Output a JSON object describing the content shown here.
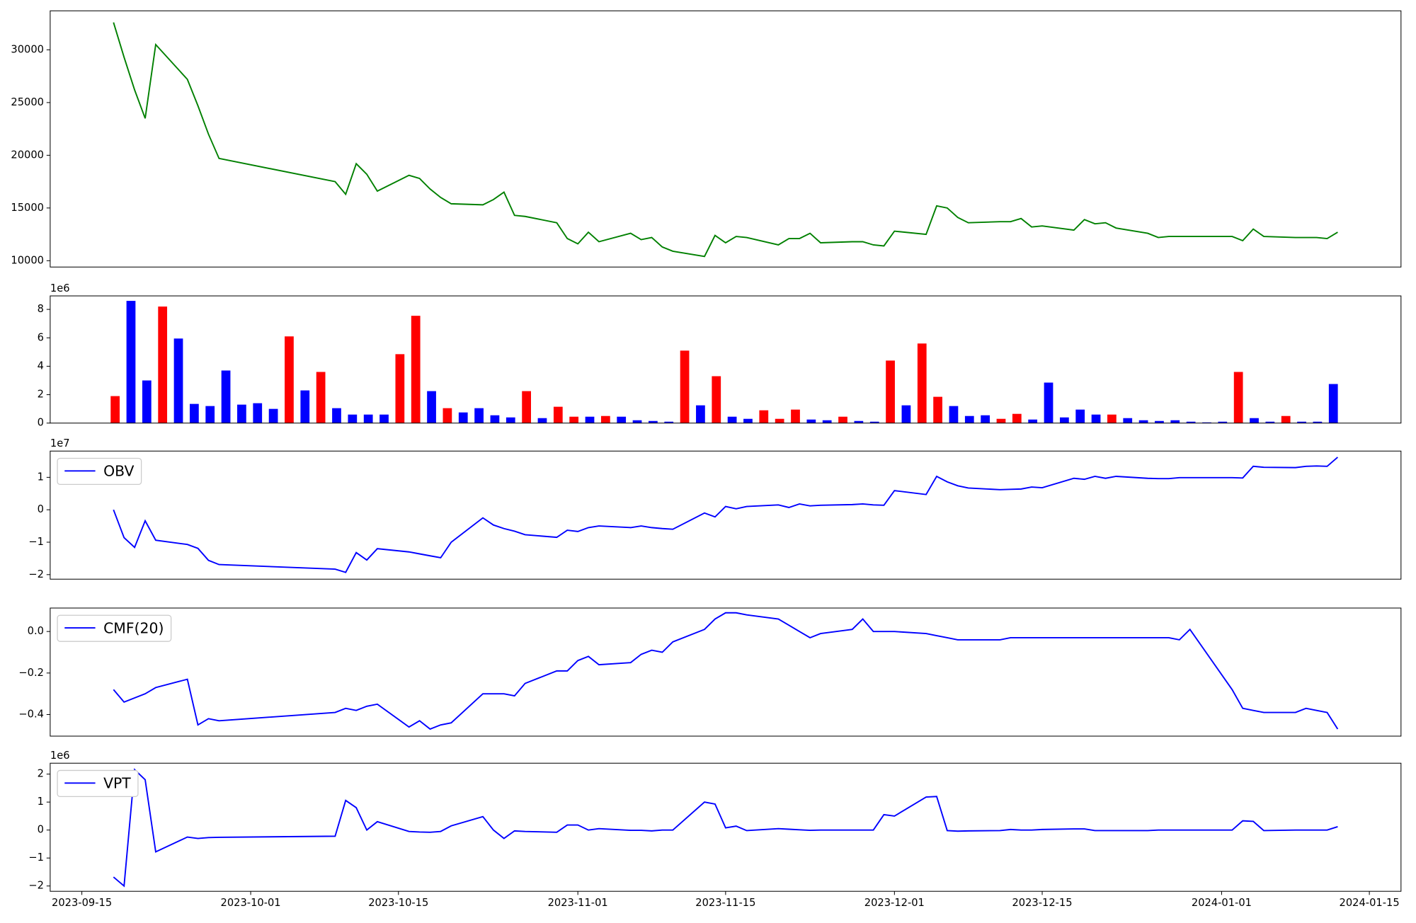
{
  "chart_data": [
    {
      "type": "line",
      "color": "green",
      "x": [
        "2023-09-18",
        "2023-09-19",
        "2023-09-20",
        "2023-09-21",
        "2023-09-22",
        "2023-09-25",
        "2023-09-26",
        "2023-09-27",
        "2023-09-28",
        "2023-10-09",
        "2023-10-10",
        "2023-10-11",
        "2023-10-12",
        "2023-10-13",
        "2023-10-16",
        "2023-10-17",
        "2023-10-18",
        "2023-10-19",
        "2023-10-20",
        "2023-10-23",
        "2023-10-24",
        "2023-10-25",
        "2023-10-26",
        "2023-10-27",
        "2023-10-30",
        "2023-10-31",
        "2023-11-01",
        "2023-11-02",
        "2023-11-03",
        "2023-11-06",
        "2023-11-07",
        "2023-11-08",
        "2023-11-09",
        "2023-11-10",
        "2023-11-13",
        "2023-11-14",
        "2023-11-15",
        "2023-11-16",
        "2023-11-17",
        "2023-11-20",
        "2023-11-21",
        "2023-11-22",
        "2023-11-23",
        "2023-11-24",
        "2023-11-27",
        "2023-11-28",
        "2023-11-29",
        "2023-11-30",
        "2023-12-01",
        "2023-12-04",
        "2023-12-05",
        "2023-12-06",
        "2023-12-07",
        "2023-12-08",
        "2023-12-11",
        "2023-12-12",
        "2023-12-13",
        "2023-12-14",
        "2023-12-15",
        "2023-12-18",
        "2023-12-19",
        "2023-12-20",
        "2023-12-21",
        "2023-12-22",
        "2023-12-25",
        "2023-12-26",
        "2023-12-27",
        "2023-12-28",
        "2023-12-29",
        "2024-01-02",
        "2024-01-03",
        "2024-01-04",
        "2024-01-05",
        "2024-01-08",
        "2024-01-09",
        "2024-01-10",
        "2024-01-11",
        "2024-01-12"
      ],
      "values": [
        32600,
        29300,
        26200,
        23500,
        30500,
        27200,
        24700,
        22000,
        19700,
        17500,
        16300,
        19200,
        18200,
        16600,
        18100,
        17800,
        16800,
        16000,
        15400,
        15300,
        15800,
        16500,
        14300,
        14200,
        13600,
        12100,
        11600,
        12700,
        11800,
        12600,
        12000,
        12200,
        11300,
        10900,
        10400,
        12400,
        11700,
        12300,
        12200,
        11500,
        12100,
        12100,
        12600,
        11700,
        11800,
        11800,
        11500,
        11400,
        12800,
        12500,
        15200,
        15000,
        14100,
        13600,
        13700,
        13700,
        14000,
        13200,
        13300,
        12900,
        13900,
        13500,
        13600,
        13100,
        12600,
        12200,
        12300,
        12300,
        12300,
        12300,
        11900,
        13000,
        12300,
        12200,
        12200,
        12200,
        12100,
        12700
      ],
      "xlim": [
        "2023-09-12",
        "2024-01-18"
      ],
      "ylim": [
        9400,
        33700
      ],
      "yticks": [
        10000,
        15000,
        20000,
        25000,
        30000
      ]
    },
    {
      "type": "bar",
      "y_offset_label": "1e6",
      "categories": [
        null,
        null,
        null,
        null,
        null,
        null,
        null,
        null,
        null,
        null,
        null,
        null,
        null,
        null,
        null,
        null,
        null,
        null,
        null,
        null,
        null,
        null,
        null,
        null,
        null,
        null,
        null,
        null,
        null,
        null,
        null,
        null,
        null,
        null,
        null,
        null,
        null,
        null,
        null,
        null,
        null,
        null,
        null,
        null,
        null,
        null,
        null,
        null,
        null,
        null,
        null,
        null,
        null,
        null,
        null,
        null,
        null,
        null,
        null,
        null,
        null,
        null,
        null,
        null,
        null,
        null,
        null,
        null,
        null,
        null,
        null,
        null,
        null,
        null,
        null,
        null,
        null,
        null
      ],
      "values": [
        1900000,
        8600000,
        3000000,
        8200000,
        5950000,
        1350000,
        1200000,
        3700000,
        1300000,
        1400000,
        1000000,
        6100000,
        2300000,
        3600000,
        1050000,
        600000,
        600000,
        600000,
        4850000,
        7550000,
        2250000,
        1050000,
        750000,
        1050000,
        550000,
        400000,
        2250000,
        350000,
        1150000,
        450000,
        450000,
        500000,
        450000,
        200000,
        150000,
        100000,
        5100000,
        1250000,
        3300000,
        450000,
        300000,
        900000,
        300000,
        950000,
        250000,
        200000,
        450000,
        150000,
        100000,
        4400000,
        1250000,
        5600000,
        1850000,
        1200000,
        500000,
        550000,
        300000,
        650000,
        250000,
        2850000,
        400000,
        950000,
        600000,
        600000,
        350000,
        200000,
        150000,
        200000,
        100000,
        50000,
        100000,
        3600000,
        350000,
        100000,
        500000,
        100000,
        100000,
        2750000
      ],
      "colors": [
        "red",
        "blue",
        "blue",
        "red",
        "blue",
        "blue",
        "blue",
        "blue",
        "blue",
        "blue",
        "blue",
        "red",
        "blue",
        "red",
        "blue",
        "blue",
        "blue",
        "blue",
        "red",
        "red",
        "blue",
        "red",
        "blue",
        "blue",
        "blue",
        "blue",
        "red",
        "blue",
        "red",
        "red",
        "blue",
        "red",
        "blue",
        "blue",
        "blue",
        "blue",
        "red",
        "blue",
        "red",
        "blue",
        "blue",
        "red",
        "red",
        "red",
        "blue",
        "blue",
        "red",
        "blue",
        "blue",
        "red",
        "blue",
        "red",
        "red",
        "blue",
        "blue",
        "blue",
        "red",
        "red",
        "blue",
        "blue",
        "blue",
        "blue",
        "blue",
        "red",
        "blue",
        "blue",
        "blue",
        "blue",
        "blue",
        "blue",
        "blue",
        "red",
        "blue",
        "blue",
        "red",
        "blue",
        "blue",
        "blue"
      ],
      "ylim": [
        0,
        8950000
      ],
      "yticks": [
        0,
        {
          "value": 2000000,
          "label": "2"
        },
        {
          "value": 4000000,
          "label": "4"
        },
        {
          "value": 6000000,
          "label": "6"
        },
        {
          "value": 8000000,
          "label": "8"
        }
      ]
    },
    {
      "type": "line",
      "y_offset_label": "1e7",
      "legend": "upper left",
      "x": [
        "2023-09-18",
        "2023-09-19",
        "2023-09-20",
        "2023-09-21",
        "2023-09-22",
        "2023-09-25",
        "2023-09-26",
        "2023-09-27",
        "2023-09-28",
        "2023-10-09",
        "2023-10-10",
        "2023-10-11",
        "2023-10-12",
        "2023-10-13",
        "2023-10-16",
        "2023-10-17",
        "2023-10-18",
        "2023-10-19",
        "2023-10-20",
        "2023-10-23",
        "2023-10-24",
        "2023-10-25",
        "2023-10-26",
        "2023-10-27",
        "2023-10-30",
        "2023-10-31",
        "2023-11-01",
        "2023-11-02",
        "2023-11-03",
        "2023-11-06",
        "2023-11-07",
        "2023-11-08",
        "2023-11-09",
        "2023-11-10",
        "2023-11-13",
        "2023-11-14",
        "2023-11-15",
        "2023-11-16",
        "2023-11-17",
        "2023-11-20",
        "2023-11-21",
        "2023-11-22",
        "2023-11-23",
        "2023-11-24",
        "2023-11-27",
        "2023-11-28",
        "2023-11-29",
        "2023-11-30",
        "2023-12-01",
        "2023-12-04",
        "2023-12-05",
        "2023-12-06",
        "2023-12-07",
        "2023-12-08",
        "2023-12-11",
        "2023-12-12",
        "2023-12-13",
        "2023-12-14",
        "2023-12-15",
        "2023-12-18",
        "2023-12-19",
        "2023-12-20",
        "2023-12-21",
        "2023-12-22",
        "2023-12-25",
        "2023-12-26",
        "2023-12-27",
        "2023-12-28",
        "2023-12-29",
        "2024-01-02",
        "2024-01-03",
        "2024-01-04",
        "2024-01-05",
        "2024-01-08",
        "2024-01-09",
        "2024-01-10",
        "2024-01-11",
        "2024-01-12"
      ],
      "series": [
        {
          "name": "OBV",
          "color": "blue",
          "values": [
            0,
            -8600000,
            -11600000,
            -3400000,
            -9400000,
            -10700000,
            -11900000,
            -15600000,
            -16900000,
            -18300000,
            -19300000,
            -13200000,
            -15500000,
            -12000000,
            -13000000,
            -13600000,
            -14200000,
            -14800000,
            -10000000,
            -2500000,
            -4700000,
            -5800000,
            -6600000,
            -7700000,
            -8500000,
            -6300000,
            -6700000,
            -5500000,
            -5000000,
            -5500000,
            -5000000,
            -5500000,
            -5800000,
            -6000000,
            -1000000,
            -2200000,
            1000000,
            300000,
            1000000,
            1500000,
            700000,
            1800000,
            1200000,
            1400000,
            1600000,
            1800000,
            1500000,
            1400000,
            5900000,
            4700000,
            10300000,
            8600000,
            7400000,
            6700000,
            6200000,
            6300000,
            6400000,
            7000000,
            6800000,
            9700000,
            9400000,
            10300000,
            9700000,
            10300000,
            9700000,
            9600000,
            9600000,
            9900000,
            9900000,
            9900000,
            9800000,
            13400000,
            13100000,
            13000000,
            13400000,
            13500000,
            13400000,
            16200000
          ]
        }
      ],
      "xlim": [
        "2023-09-12",
        "2024-01-18"
      ],
      "ylim": [
        -21400000,
        18100000
      ],
      "yticks": [
        {
          "value": -20000000,
          "label": "−2"
        },
        {
          "value": -10000000,
          "label": "−1"
        },
        0,
        {
          "value": 10000000,
          "label": "1"
        }
      ]
    },
    {
      "type": "line",
      "legend": "upper left",
      "x": [
        "2023-09-18",
        "2023-09-19",
        "2023-09-20",
        "2023-09-21",
        "2023-09-22",
        "2023-09-25",
        "2023-09-26",
        "2023-09-27",
        "2023-09-28",
        "2023-10-09",
        "2023-10-10",
        "2023-10-11",
        "2023-10-12",
        "2023-10-13",
        "2023-10-16",
        "2023-10-17",
        "2023-10-18",
        "2023-10-19",
        "2023-10-20",
        "2023-10-23",
        "2023-10-24",
        "2023-10-25",
        "2023-10-26",
        "2023-10-27",
        "2023-10-30",
        "2023-10-31",
        "2023-11-01",
        "2023-11-02",
        "2023-11-03",
        "2023-11-06",
        "2023-11-07",
        "2023-11-08",
        "2023-11-09",
        "2023-11-10",
        "2023-11-13",
        "2023-11-14",
        "2023-11-15",
        "2023-11-16",
        "2023-11-17",
        "2023-11-20",
        "2023-11-21",
        "2023-11-22",
        "2023-11-23",
        "2023-11-24",
        "2023-11-27",
        "2023-11-28",
        "2023-11-29",
        "2023-11-30",
        "2023-12-01",
        "2023-12-04",
        "2023-12-05",
        "2023-12-06",
        "2023-12-07",
        "2023-12-08",
        "2023-12-11",
        "2023-12-12",
        "2023-12-13",
        "2023-12-14",
        "2023-12-15",
        "2023-12-18",
        "2023-12-19",
        "2023-12-20",
        "2023-12-21",
        "2023-12-22",
        "2023-12-25",
        "2023-12-26",
        "2023-12-27",
        "2023-12-28",
        "2023-12-29",
        "2024-01-02",
        "2024-01-03",
        "2024-01-04",
        "2024-01-05",
        "2024-01-08",
        "2024-01-09",
        "2024-01-10",
        "2024-01-11",
        "2024-01-12"
      ],
      "series": [
        {
          "name": "CMF(20)",
          "color": "blue",
          "values": [
            -0.28,
            -0.34,
            -0.32,
            -0.3,
            -0.27,
            -0.23,
            -0.45,
            -0.42,
            -0.43,
            -0.39,
            -0.37,
            -0.38,
            -0.36,
            -0.35,
            -0.46,
            -0.43,
            -0.47,
            -0.45,
            -0.44,
            -0.3,
            -0.3,
            -0.3,
            -0.31,
            -0.25,
            -0.19,
            -0.19,
            -0.14,
            -0.12,
            -0.16,
            -0.15,
            -0.11,
            -0.09,
            -0.1,
            -0.05,
            0.01,
            0.06,
            0.09,
            0.09,
            0.08,
            0.06,
            0.03,
            0.0,
            -0.03,
            -0.01,
            0.01,
            0.06,
            0.0,
            0.0,
            0.0,
            -0.01,
            -0.02,
            -0.03,
            -0.04,
            -0.04,
            -0.04,
            -0.03,
            -0.03,
            -0.03,
            -0.03,
            -0.03,
            -0.03,
            -0.03,
            -0.03,
            -0.03,
            -0.03,
            -0.03,
            -0.03,
            -0.04,
            0.01,
            -0.28,
            -0.37,
            -0.38,
            -0.39,
            -0.39,
            -0.37,
            -0.38,
            -0.39,
            -0.47
          ]
        }
      ],
      "xlim": [
        "2023-09-12",
        "2024-01-18"
      ],
      "ylim": [
        -0.504,
        0.113
      ],
      "yticks": [
        {
          "value": -0.4,
          "label": "−0.4"
        },
        {
          "value": -0.2,
          "label": "−0.2"
        },
        {
          "value": 0,
          "label": "0.0"
        }
      ]
    },
    {
      "type": "line",
      "y_offset_label": "1e6",
      "legend": "upper left",
      "x": [
        "2023-09-18",
        "2023-09-19",
        "2023-09-20",
        "2023-09-21",
        "2023-09-22",
        "2023-09-25",
        "2023-09-26",
        "2023-09-27",
        "2023-09-28",
        "2023-10-09",
        "2023-10-10",
        "2023-10-11",
        "2023-10-12",
        "2023-10-13",
        "2023-10-16",
        "2023-10-17",
        "2023-10-18",
        "2023-10-19",
        "2023-10-20",
        "2023-10-23",
        "2023-10-24",
        "2023-10-25",
        "2023-10-26",
        "2023-10-27",
        "2023-10-30",
        "2023-10-31",
        "2023-11-01",
        "2023-11-02",
        "2023-11-03",
        "2023-11-06",
        "2023-11-07",
        "2023-11-08",
        "2023-11-09",
        "2023-11-10",
        "2023-11-13",
        "2023-11-14",
        "2023-11-15",
        "2023-11-16",
        "2023-11-17",
        "2023-11-20",
        "2023-11-21",
        "2023-11-22",
        "2023-11-23",
        "2023-11-24",
        "2023-11-27",
        "2023-11-28",
        "2023-11-29",
        "2023-11-30",
        "2023-12-01",
        "2023-12-04",
        "2023-12-05",
        "2023-12-06",
        "2023-12-07",
        "2023-12-08",
        "2023-12-11",
        "2023-12-12",
        "2023-12-13",
        "2023-12-14",
        "2023-12-15",
        "2023-12-18",
        "2023-12-19",
        "2023-12-20",
        "2023-12-21",
        "2023-12-22",
        "2023-12-25",
        "2023-12-26",
        "2023-12-27",
        "2023-12-28",
        "2023-12-29",
        "2024-01-02",
        "2024-01-03",
        "2024-01-04",
        "2024-01-05",
        "2024-01-08",
        "2024-01-09",
        "2024-01-10",
        "2024-01-11",
        "2024-01-12"
      ],
      "series": [
        {
          "name": "VPT",
          "color": "blue",
          "values": [
            -1680000,
            -2000000,
            2160000,
            1800000,
            -780000,
            -250000,
            -300000,
            -270000,
            -260000,
            -220000,
            1060000,
            800000,
            0,
            300000,
            -50000,
            -70000,
            -80000,
            -50000,
            150000,
            480000,
            0,
            -300000,
            -30000,
            -50000,
            -80000,
            180000,
            180000,
            0,
            50000,
            -10000,
            -10000,
            -30000,
            0,
            0,
            1000000,
            930000,
            80000,
            140000,
            -20000,
            50000,
            30000,
            10000,
            -10000,
            0,
            0,
            0,
            0,
            550000,
            500000,
            1180000,
            1200000,
            -20000,
            -40000,
            -30000,
            -20000,
            20000,
            0,
            0,
            20000,
            40000,
            40000,
            -20000,
            -20000,
            -20000,
            -20000,
            0,
            0,
            0,
            0,
            0,
            330000,
            310000,
            -20000,
            0,
            0,
            0,
            0,
            120000
          ]
        }
      ],
      "xlim": [
        "2023-09-12",
        "2024-01-18"
      ],
      "ylim": [
        -2190000,
        2390000
      ],
      "yticks": [
        {
          "value": -2000000,
          "label": "−2"
        },
        {
          "value": -1000000,
          "label": "−1"
        },
        0,
        {
          "value": 1000000,
          "label": "1"
        },
        {
          "value": 2000000,
          "label": "2"
        }
      ],
      "xticks": [
        "2023-09-15",
        "2023-10-01",
        "2023-10-15",
        "2023-11-01",
        "2023-11-15",
        "2023-12-01",
        "2023-12-15",
        "2024-01-01",
        "2024-01-15"
      ]
    }
  ]
}
